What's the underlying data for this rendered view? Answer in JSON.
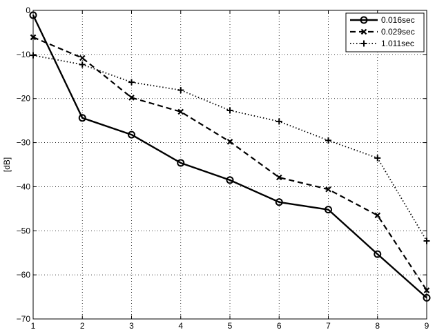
{
  "chart_data": {
    "type": "line",
    "title": "",
    "xlabel": "",
    "ylabel": "[dB]",
    "x": [
      1,
      2,
      3,
      4,
      5,
      6,
      7,
      8,
      9
    ],
    "xlim": [
      1,
      9
    ],
    "ylim": [
      -70,
      0
    ],
    "xticks": [
      1,
      2,
      3,
      4,
      5,
      6,
      7,
      8,
      9
    ],
    "yticks": [
      0,
      -10,
      -20,
      -30,
      -40,
      -50,
      -60,
      -70
    ],
    "grid": true,
    "legend_position": "top-right",
    "series": [
      {
        "name": "0.016sec",
        "line_style": "solid",
        "marker": "circle",
        "values": [
          -1.1,
          -24.4,
          -28.2,
          -34.6,
          -38.5,
          -43.5,
          -45.2,
          -55.3,
          -65.2
        ]
      },
      {
        "name": "0.029sec",
        "line_style": "dashed",
        "marker": "x",
        "values": [
          -6.1,
          -10.8,
          -19.8,
          -23.0,
          -29.8,
          -37.9,
          -40.6,
          -46.5,
          -63.5
        ]
      },
      {
        "name": "1.011sec",
        "line_style": "dotted",
        "marker": "plus",
        "values": [
          -10.2,
          -12.3,
          -16.3,
          -18.1,
          -22.7,
          -25.2,
          -29.5,
          -33.5,
          -52.3
        ]
      }
    ],
    "colors": {
      "series": "#000000",
      "grid": "#000000",
      "background": "#ffffff"
    }
  }
}
